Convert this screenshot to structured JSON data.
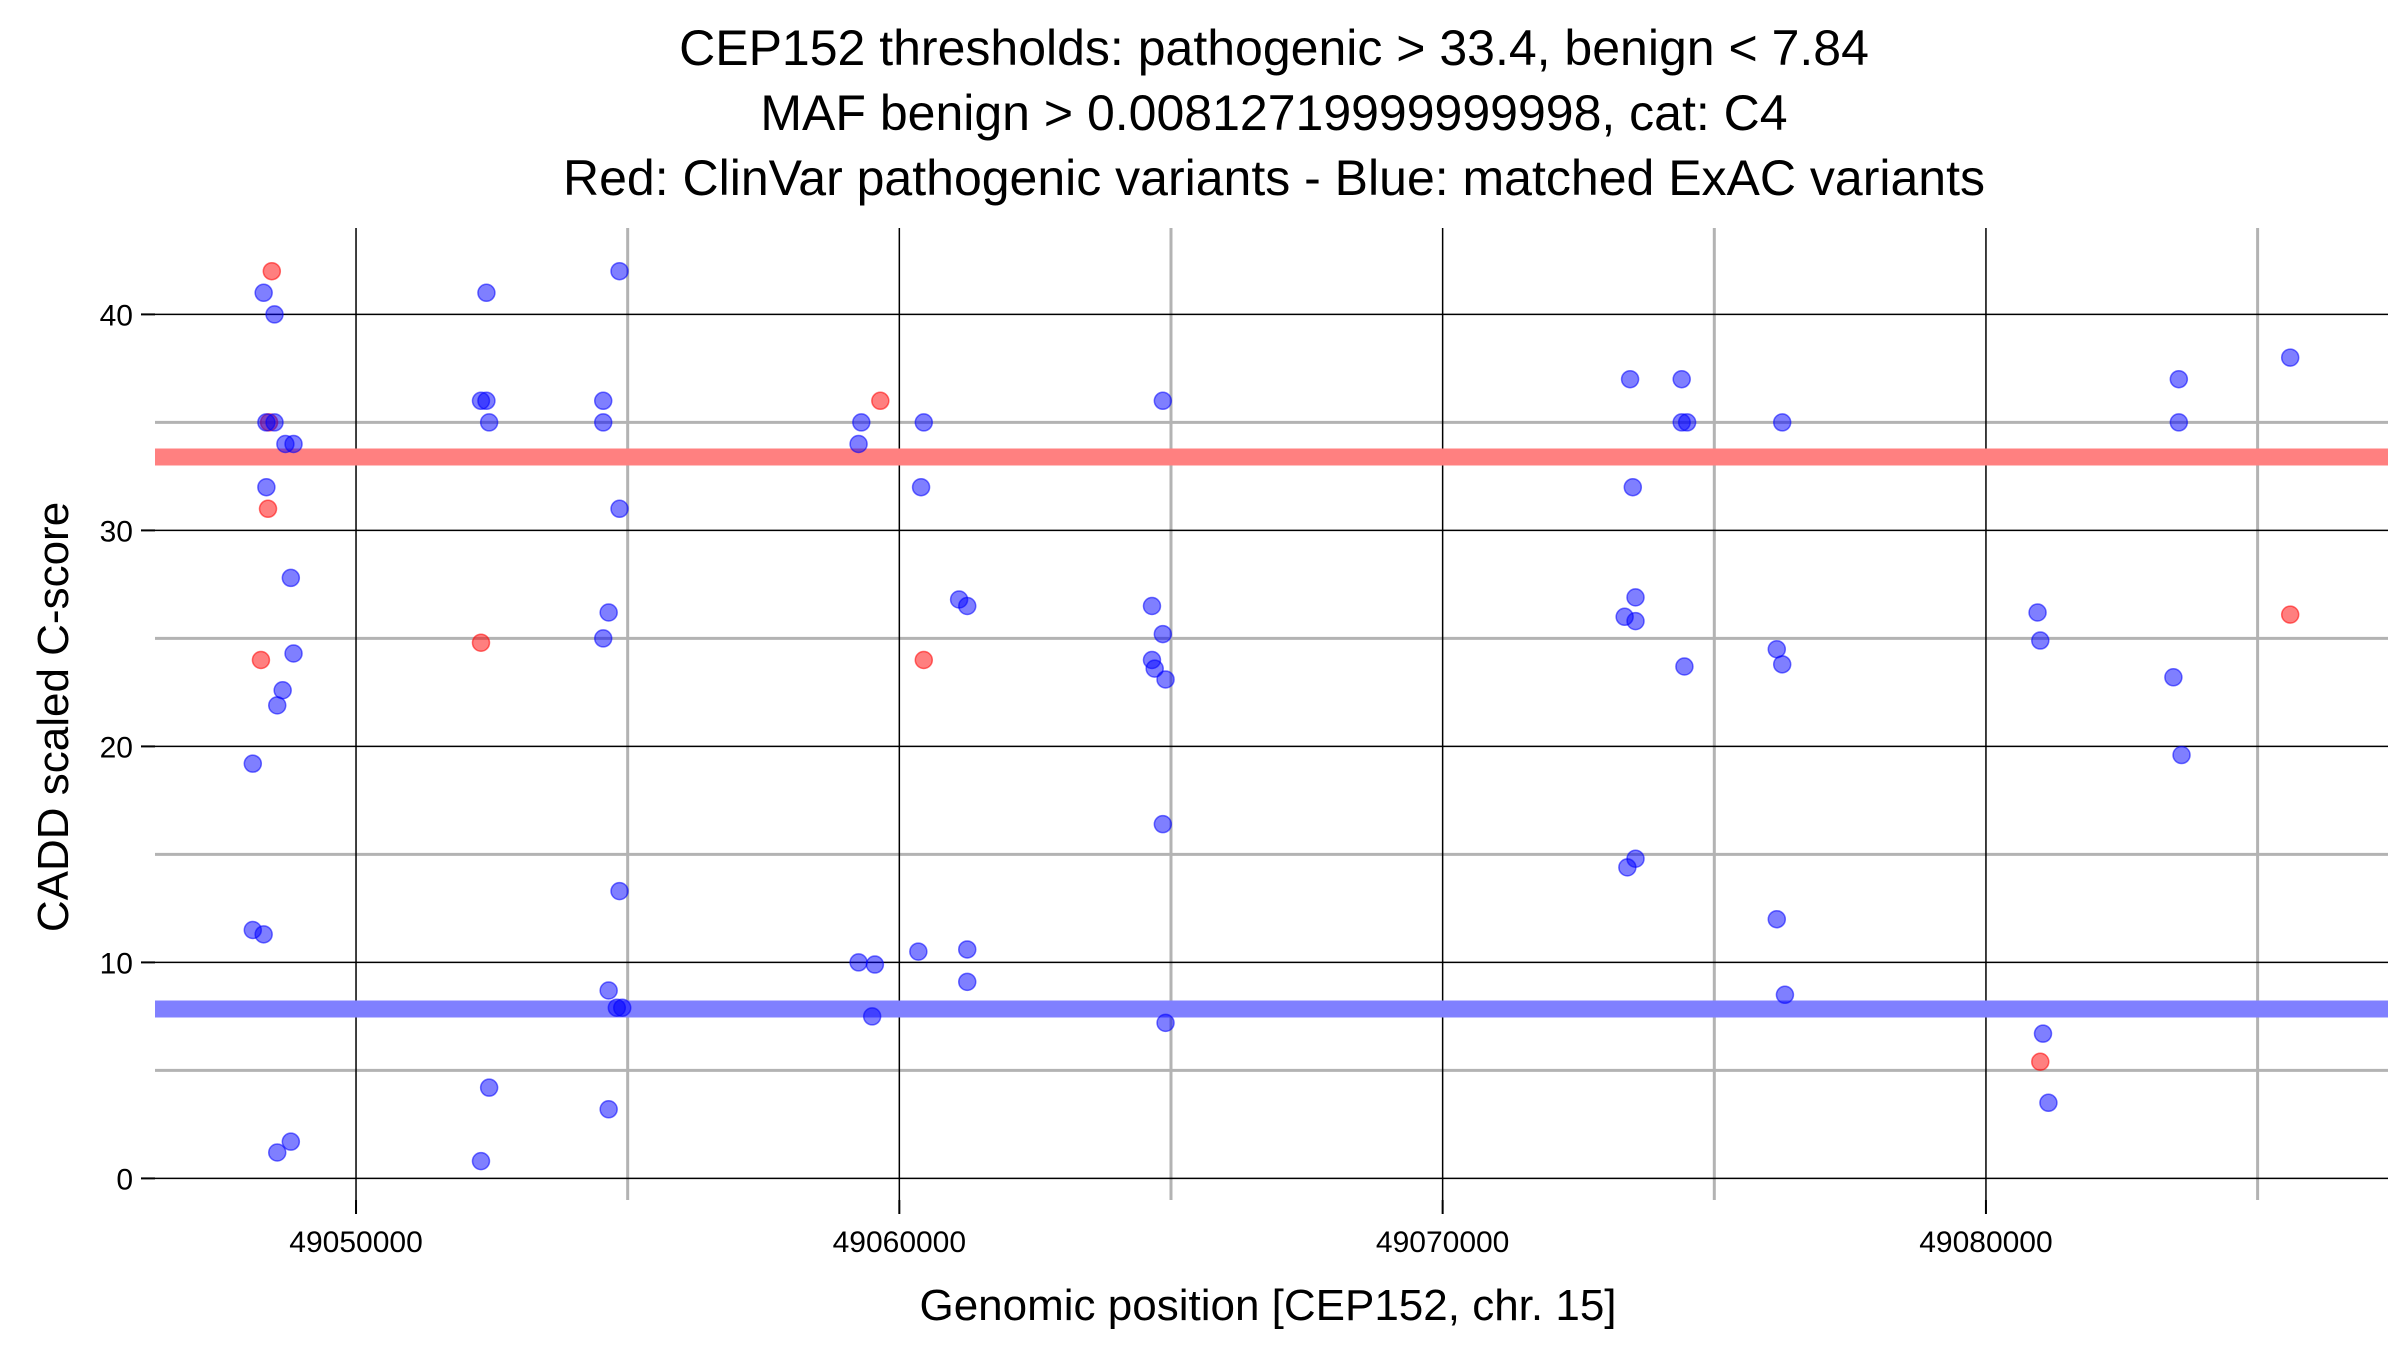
{
  "chart_data": {
    "type": "scatter",
    "title_lines": [
      "CEP152 thresholds: pathogenic > 33.4, benign < 7.84",
      "MAF benign > 0.00812719999999998, cat: C4",
      "Red: ClinVar pathogenic variants - Blue: matched ExAC variants"
    ],
    "xlabel": "Genomic position [CEP152, chr. 15]",
    "ylabel": "CADD scaled C-score",
    "xlim": [
      49046300,
      49087400
    ],
    "ylim": [
      -1,
      44
    ],
    "x_ticks": [
      49050000,
      49060000,
      49070000,
      49080000
    ],
    "x_tick_labels": [
      "49050000",
      "49060000",
      "49070000",
      "49080000"
    ],
    "y_ticks": [
      0,
      10,
      20,
      30,
      40
    ],
    "y_tick_labels": [
      "0",
      "10",
      "20",
      "30",
      "40"
    ],
    "x_minor_gridlines": [
      49055000,
      49065000,
      49075000,
      49085000
    ],
    "y_minor_gridlines": [
      5,
      15,
      25,
      35
    ],
    "grid": true,
    "thresholds": [
      {
        "name": "pathogenic",
        "value": 33.4,
        "color": "#ff8080"
      },
      {
        "name": "benign",
        "value": 7.84,
        "color": "#8080ff"
      }
    ],
    "series": [
      {
        "color": "#ff0000",
        "points": [
          [
            49048450,
            42
          ],
          [
            49048400,
            35
          ],
          [
            49048380,
            31
          ],
          [
            49048250,
            24
          ],
          [
            49052300,
            24.8
          ],
          [
            49059650,
            36
          ],
          [
            49060450,
            24
          ],
          [
            49081000,
            5.4
          ],
          [
            49085600,
            26.1
          ]
        ]
      },
      {
        "color": "#0000ff",
        "points": [
          [
            49048300,
            41
          ],
          [
            49048500,
            40
          ],
          [
            49048350,
            35
          ],
          [
            49048500,
            35
          ],
          [
            49048700,
            34
          ],
          [
            49048850,
            34
          ],
          [
            49048350,
            32
          ],
          [
            49048800,
            27.8
          ],
          [
            49048850,
            24.3
          ],
          [
            49048650,
            22.6
          ],
          [
            49048550,
            21.9
          ],
          [
            49048100,
            19.2
          ],
          [
            49048100,
            11.5
          ],
          [
            49048300,
            11.3
          ],
          [
            49048550,
            1.2
          ],
          [
            49048800,
            1.7
          ],
          [
            49052400,
            41
          ],
          [
            49052300,
            36
          ],
          [
            49052400,
            36
          ],
          [
            49052450,
            35
          ],
          [
            49052450,
            4.2
          ],
          [
            49052300,
            0.8
          ],
          [
            49054850,
            42
          ],
          [
            49054550,
            36
          ],
          [
            49054550,
            35
          ],
          [
            49054850,
            31
          ],
          [
            49054650,
            26.2
          ],
          [
            49054550,
            25
          ],
          [
            49054850,
            13.3
          ],
          [
            49054650,
            8.7
          ],
          [
            49054800,
            7.9
          ],
          [
            49054900,
            7.9
          ],
          [
            49054650,
            3.2
          ],
          [
            49059300,
            35
          ],
          [
            49059250,
            34
          ],
          [
            49059250,
            10
          ],
          [
            49059550,
            9.9
          ],
          [
            49059500,
            7.5
          ],
          [
            49060450,
            35
          ],
          [
            49060400,
            32
          ],
          [
            49060350,
            10.5
          ],
          [
            49061100,
            26.8
          ],
          [
            49061250,
            26.5
          ],
          [
            49061250,
            10.6
          ],
          [
            49061250,
            9.1
          ],
          [
            49064850,
            36
          ],
          [
            49064650,
            26.5
          ],
          [
            49064850,
            25.2
          ],
          [
            49064650,
            24
          ],
          [
            49064700,
            23.6
          ],
          [
            49064900,
            23.1
          ],
          [
            49064850,
            16.4
          ],
          [
            49064900,
            7.2
          ],
          [
            49073450,
            37
          ],
          [
            49073500,
            32
          ],
          [
            49073550,
            26.9
          ],
          [
            49073350,
            26
          ],
          [
            49073550,
            25.8
          ],
          [
            49073400,
            14.4
          ],
          [
            49073550,
            14.8
          ],
          [
            49074400,
            37
          ],
          [
            49074400,
            35
          ],
          [
            49074500,
            35
          ],
          [
            49074450,
            23.7
          ],
          [
            49076250,
            35
          ],
          [
            49076150,
            24.5
          ],
          [
            49076250,
            23.8
          ],
          [
            49076150,
            12
          ],
          [
            49076300,
            8.5
          ],
          [
            49080950,
            26.2
          ],
          [
            49081000,
            24.9
          ],
          [
            49081050,
            6.7
          ],
          [
            49081150,
            3.5
          ],
          [
            49083550,
            37
          ],
          [
            49083550,
            35
          ],
          [
            49083450,
            23.2
          ],
          [
            49083600,
            19.6
          ],
          [
            49085600,
            38
          ]
        ]
      }
    ]
  }
}
